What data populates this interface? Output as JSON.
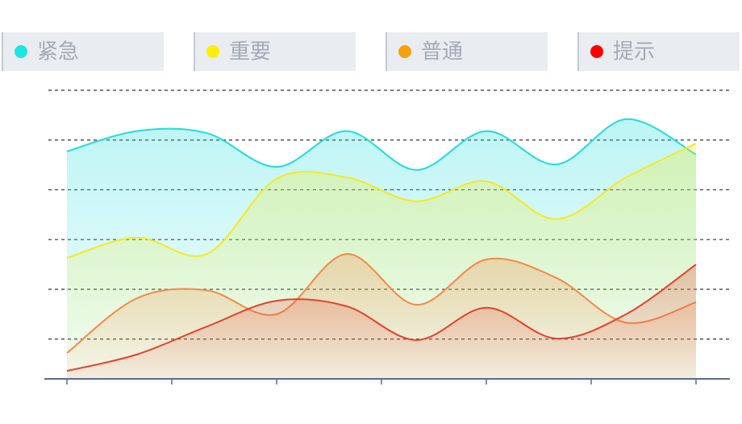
{
  "chart_data": {
    "type": "area",
    "smooth": true,
    "grid": true,
    "categories": [
      null,
      null,
      null,
      null,
      null,
      null,
      null,
      null,
      null,
      null
    ],
    "ylim": [
      0.2,
      6
    ],
    "yticks": [
      1,
      2,
      3,
      4,
      5,
      6
    ],
    "series": [
      {
        "name": "提示",
        "color": "#22dcdc",
        "values": [
          4.77,
          5.18,
          5.14,
          4.46,
          5.18,
          4.4,
          5.18,
          4.51,
          5.42,
          4.71
        ]
      },
      {
        "name": "普通",
        "color": "#f5ea1e",
        "values": [
          2.63,
          3.04,
          2.71,
          4.22,
          4.25,
          3.77,
          4.17,
          3.41,
          4.25,
          4.93
        ]
      },
      {
        "name": "重要",
        "color": "#f7884a",
        "values": [
          0.72,
          1.82,
          1.98,
          1.5,
          2.71,
          1.69,
          2.6,
          2.23,
          1.33,
          1.74
        ]
      },
      {
        "name": "紧急",
        "color": "#e8402e",
        "values": [
          0.36,
          0.69,
          1.25,
          1.77,
          1.66,
          0.98,
          1.63,
          1.01,
          1.5,
          2.5
        ]
      }
    ],
    "legend_order": [
      3,
      2,
      1,
      0
    ],
    "legend_colors": [
      "#1ee3e3",
      "#ffee00",
      "#f5a00f",
      "#ff0000"
    ]
  }
}
